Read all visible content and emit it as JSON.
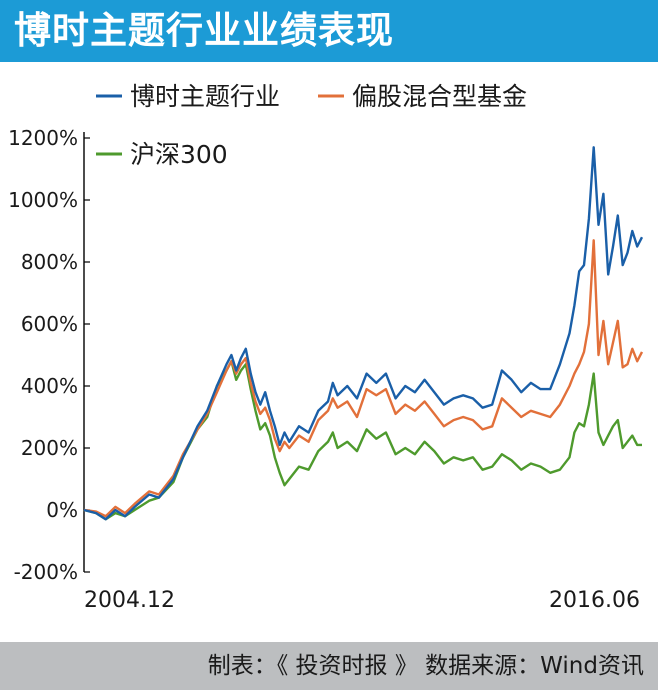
{
  "title": "博时主题行业业绩表现",
  "footer": "制表：《 投资时报 》 数据来源：Wind资讯",
  "chart_data": {
    "type": "line",
    "ylim": [
      -200,
      1200
    ],
    "yticks": [
      -200,
      0,
      200,
      400,
      600,
      800,
      1000,
      1200
    ],
    "tick_suffix": "%",
    "xlim": [
      2004.95,
      2016.5
    ],
    "x_tick_labels": [
      {
        "x": 2004.95,
        "label": "2004.12"
      },
      {
        "x": 2016.5,
        "label": "2016.06"
      }
    ],
    "grid": false,
    "legend": "top",
    "series": [
      {
        "name": "博时主题行业",
        "color": "#1a5fa8",
        "points": [
          [
            2004.95,
            0
          ],
          [
            2005.2,
            -10
          ],
          [
            2005.4,
            -30
          ],
          [
            2005.6,
            0
          ],
          [
            2005.8,
            -20
          ],
          [
            2006.0,
            10
          ],
          [
            2006.3,
            50
          ],
          [
            2006.5,
            40
          ],
          [
            2006.8,
            100
          ],
          [
            2007.0,
            170
          ],
          [
            2007.3,
            270
          ],
          [
            2007.5,
            320
          ],
          [
            2007.7,
            400
          ],
          [
            2007.9,
            470
          ],
          [
            2008.0,
            500
          ],
          [
            2008.1,
            450
          ],
          [
            2008.2,
            490
          ],
          [
            2008.3,
            520
          ],
          [
            2008.4,
            440
          ],
          [
            2008.5,
            380
          ],
          [
            2008.6,
            340
          ],
          [
            2008.7,
            380
          ],
          [
            2008.8,
            320
          ],
          [
            2008.9,
            270
          ],
          [
            2009.0,
            210
          ],
          [
            2009.1,
            250
          ],
          [
            2009.2,
            220
          ],
          [
            2009.4,
            270
          ],
          [
            2009.6,
            250
          ],
          [
            2009.8,
            320
          ],
          [
            2010.0,
            350
          ],
          [
            2010.1,
            410
          ],
          [
            2010.2,
            370
          ],
          [
            2010.4,
            400
          ],
          [
            2010.6,
            360
          ],
          [
            2010.8,
            440
          ],
          [
            2011.0,
            410
          ],
          [
            2011.2,
            440
          ],
          [
            2011.4,
            360
          ],
          [
            2011.6,
            400
          ],
          [
            2011.8,
            380
          ],
          [
            2012.0,
            420
          ],
          [
            2012.2,
            380
          ],
          [
            2012.4,
            340
          ],
          [
            2012.6,
            360
          ],
          [
            2012.8,
            370
          ],
          [
            2013.0,
            360
          ],
          [
            2013.2,
            330
          ],
          [
            2013.4,
            340
          ],
          [
            2013.6,
            450
          ],
          [
            2013.8,
            420
          ],
          [
            2014.0,
            380
          ],
          [
            2014.2,
            410
          ],
          [
            2014.4,
            390
          ],
          [
            2014.6,
            390
          ],
          [
            2014.8,
            470
          ],
          [
            2015.0,
            570
          ],
          [
            2015.1,
            660
          ],
          [
            2015.2,
            770
          ],
          [
            2015.3,
            790
          ],
          [
            2015.4,
            940
          ],
          [
            2015.5,
            1170
          ],
          [
            2015.6,
            920
          ],
          [
            2015.7,
            1020
          ],
          [
            2015.8,
            760
          ],
          [
            2015.9,
            850
          ],
          [
            2016.0,
            950
          ],
          [
            2016.1,
            790
          ],
          [
            2016.2,
            830
          ],
          [
            2016.3,
            900
          ],
          [
            2016.4,
            850
          ],
          [
            2016.5,
            880
          ]
        ]
      },
      {
        "name": "偏股混合型基金",
        "color": "#e2703a",
        "points": [
          [
            2004.95,
            0
          ],
          [
            2005.2,
            -5
          ],
          [
            2005.4,
            -20
          ],
          [
            2005.6,
            10
          ],
          [
            2005.8,
            -10
          ],
          [
            2006.0,
            20
          ],
          [
            2006.3,
            60
          ],
          [
            2006.5,
            50
          ],
          [
            2006.8,
            110
          ],
          [
            2007.0,
            180
          ],
          [
            2007.3,
            260
          ],
          [
            2007.5,
            310
          ],
          [
            2007.7,
            380
          ],
          [
            2007.9,
            450
          ],
          [
            2008.0,
            480
          ],
          [
            2008.1,
            440
          ],
          [
            2008.2,
            470
          ],
          [
            2008.3,
            490
          ],
          [
            2008.4,
            410
          ],
          [
            2008.5,
            350
          ],
          [
            2008.6,
            310
          ],
          [
            2008.7,
            330
          ],
          [
            2008.8,
            290
          ],
          [
            2008.9,
            230
          ],
          [
            2009.0,
            190
          ],
          [
            2009.1,
            220
          ],
          [
            2009.2,
            200
          ],
          [
            2009.4,
            240
          ],
          [
            2009.6,
            220
          ],
          [
            2009.8,
            290
          ],
          [
            2010.0,
            320
          ],
          [
            2010.1,
            360
          ],
          [
            2010.2,
            330
          ],
          [
            2010.4,
            350
          ],
          [
            2010.6,
            300
          ],
          [
            2010.8,
            390
          ],
          [
            2011.0,
            370
          ],
          [
            2011.2,
            390
          ],
          [
            2011.4,
            310
          ],
          [
            2011.6,
            340
          ],
          [
            2011.8,
            320
          ],
          [
            2012.0,
            350
          ],
          [
            2012.2,
            310
          ],
          [
            2012.4,
            270
          ],
          [
            2012.6,
            290
          ],
          [
            2012.8,
            300
          ],
          [
            2013.0,
            290
          ],
          [
            2013.2,
            260
          ],
          [
            2013.4,
            270
          ],
          [
            2013.6,
            360
          ],
          [
            2013.8,
            330
          ],
          [
            2014.0,
            300
          ],
          [
            2014.2,
            320
          ],
          [
            2014.4,
            310
          ],
          [
            2014.6,
            300
          ],
          [
            2014.8,
            340
          ],
          [
            2015.0,
            400
          ],
          [
            2015.1,
            440
          ],
          [
            2015.2,
            470
          ],
          [
            2015.3,
            510
          ],
          [
            2015.4,
            600
          ],
          [
            2015.5,
            870
          ],
          [
            2015.6,
            500
          ],
          [
            2015.7,
            610
          ],
          [
            2015.8,
            470
          ],
          [
            2015.9,
            540
          ],
          [
            2016.0,
            610
          ],
          [
            2016.1,
            460
          ],
          [
            2016.2,
            470
          ],
          [
            2016.3,
            520
          ],
          [
            2016.4,
            480
          ],
          [
            2016.5,
            510
          ]
        ]
      },
      {
        "name": "沪深300",
        "color": "#4e9a2d",
        "points": [
          [
            2004.95,
            0
          ],
          [
            2005.2,
            -10
          ],
          [
            2005.4,
            -30
          ],
          [
            2005.6,
            -10
          ],
          [
            2005.8,
            -20
          ],
          [
            2006.0,
            0
          ],
          [
            2006.3,
            30
          ],
          [
            2006.5,
            40
          ],
          [
            2006.8,
            90
          ],
          [
            2007.0,
            170
          ],
          [
            2007.3,
            260
          ],
          [
            2007.5,
            300
          ],
          [
            2007.7,
            400
          ],
          [
            2007.9,
            450
          ],
          [
            2008.0,
            480
          ],
          [
            2008.1,
            420
          ],
          [
            2008.2,
            450
          ],
          [
            2008.3,
            470
          ],
          [
            2008.4,
            390
          ],
          [
            2008.5,
            320
          ],
          [
            2008.6,
            260
          ],
          [
            2008.7,
            280
          ],
          [
            2008.8,
            240
          ],
          [
            2008.9,
            170
          ],
          [
            2009.0,
            120
          ],
          [
            2009.1,
            80
          ],
          [
            2009.2,
            100
          ],
          [
            2009.4,
            140
          ],
          [
            2009.6,
            130
          ],
          [
            2009.8,
            190
          ],
          [
            2010.0,
            220
          ],
          [
            2010.1,
            250
          ],
          [
            2010.2,
            200
          ],
          [
            2010.4,
            220
          ],
          [
            2010.6,
            190
          ],
          [
            2010.8,
            260
          ],
          [
            2011.0,
            230
          ],
          [
            2011.2,
            250
          ],
          [
            2011.4,
            180
          ],
          [
            2011.6,
            200
          ],
          [
            2011.8,
            180
          ],
          [
            2012.0,
            220
          ],
          [
            2012.2,
            190
          ],
          [
            2012.4,
            150
          ],
          [
            2012.6,
            170
          ],
          [
            2012.8,
            160
          ],
          [
            2013.0,
            170
          ],
          [
            2013.2,
            130
          ],
          [
            2013.4,
            140
          ],
          [
            2013.6,
            180
          ],
          [
            2013.8,
            160
          ],
          [
            2014.0,
            130
          ],
          [
            2014.2,
            150
          ],
          [
            2014.4,
            140
          ],
          [
            2014.6,
            120
          ],
          [
            2014.8,
            130
          ],
          [
            2015.0,
            170
          ],
          [
            2015.1,
            250
          ],
          [
            2015.2,
            280
          ],
          [
            2015.3,
            270
          ],
          [
            2015.4,
            340
          ],
          [
            2015.5,
            440
          ],
          [
            2015.6,
            250
          ],
          [
            2015.7,
            210
          ],
          [
            2015.8,
            240
          ],
          [
            2015.9,
            270
          ],
          [
            2016.0,
            290
          ],
          [
            2016.1,
            200
          ],
          [
            2016.2,
            220
          ],
          [
            2016.3,
            240
          ],
          [
            2016.4,
            210
          ],
          [
            2016.5,
            210
          ]
        ]
      }
    ]
  }
}
